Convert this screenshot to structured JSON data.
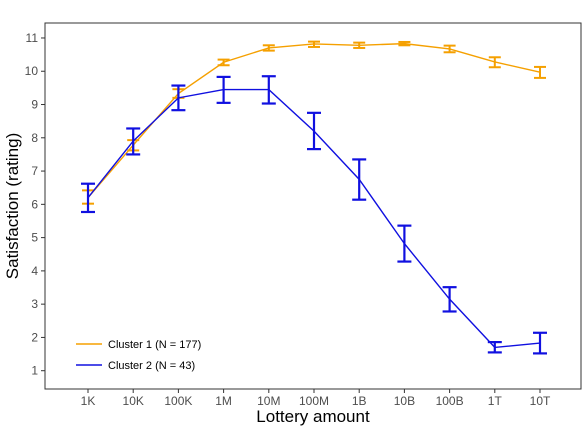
{
  "chart_data": {
    "type": "line",
    "xlabel": "Lottery amount",
    "ylabel": "Satisfaction (rating)",
    "categories": [
      "1K",
      "10K",
      "100K",
      "1M",
      "10M",
      "100M",
      "1B",
      "10B",
      "100B",
      "1T",
      "10T"
    ],
    "y_ticks": [
      1,
      2,
      3,
      4,
      5,
      6,
      7,
      8,
      9,
      10,
      11
    ],
    "ylim": [
      0.45,
      11.45
    ],
    "grid": false,
    "error_bars": true,
    "legend_position": "bottom-left",
    "series": [
      {
        "name": "Cluster 1 (N = 177)",
        "color": "#F5A000",
        "values": [
          6.2,
          7.78,
          9.33,
          10.27,
          10.7,
          10.82,
          10.78,
          10.83,
          10.67,
          10.28,
          9.97
        ],
        "error_low": [
          6.02,
          7.62,
          9.2,
          10.18,
          10.62,
          10.73,
          10.7,
          10.78,
          10.57,
          10.12,
          9.8
        ],
        "error_high": [
          6.42,
          7.93,
          9.46,
          10.35,
          10.78,
          10.89,
          10.86,
          10.88,
          10.77,
          10.42,
          10.13
        ]
      },
      {
        "name": "Cluster 2 (N = 43)",
        "color": "#1010E0",
        "values": [
          6.2,
          7.9,
          9.2,
          9.45,
          9.45,
          8.2,
          6.75,
          4.82,
          3.15,
          1.7,
          1.83
        ],
        "error_low": [
          5.77,
          7.5,
          8.83,
          9.05,
          9.03,
          7.66,
          6.14,
          4.28,
          2.78,
          1.55,
          1.52
        ],
        "error_high": [
          6.62,
          8.28,
          9.57,
          9.83,
          9.85,
          8.75,
          7.35,
          5.36,
          3.51,
          1.86,
          2.14
        ]
      }
    ]
  }
}
